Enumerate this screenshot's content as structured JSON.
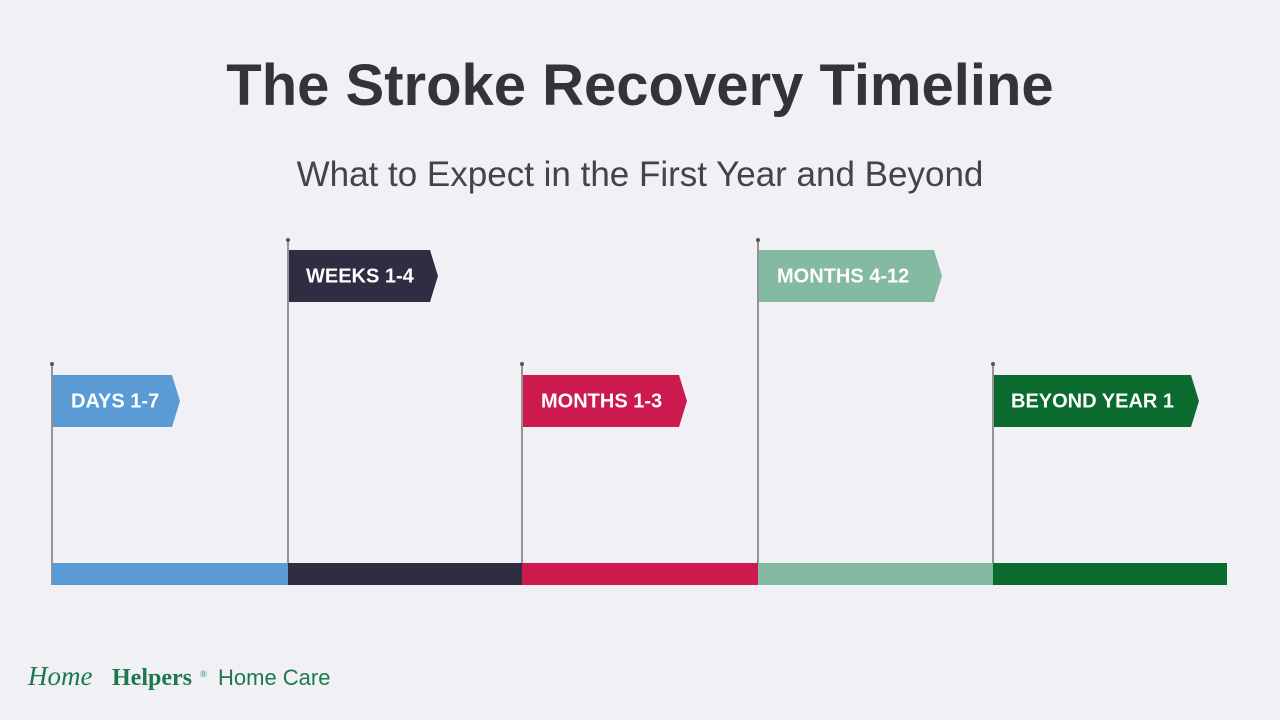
{
  "header": {
    "title": "The Stroke Recovery Timeline",
    "subtitle": "What to Expect in the First Year and Beyond"
  },
  "phases": [
    {
      "label": "DAYS 1-7"
    },
    {
      "label": "WEEKS 1-4"
    },
    {
      "label": "MONTHS 1-3"
    },
    {
      "label": "MONTHS 4-12"
    },
    {
      "label": "BEYOND YEAR 1"
    }
  ],
  "footer": {
    "logo_home": "Home",
    "logo_helpers": "Helpers",
    "logo_mark": "®",
    "logo_tagline": "Home Care"
  }
}
